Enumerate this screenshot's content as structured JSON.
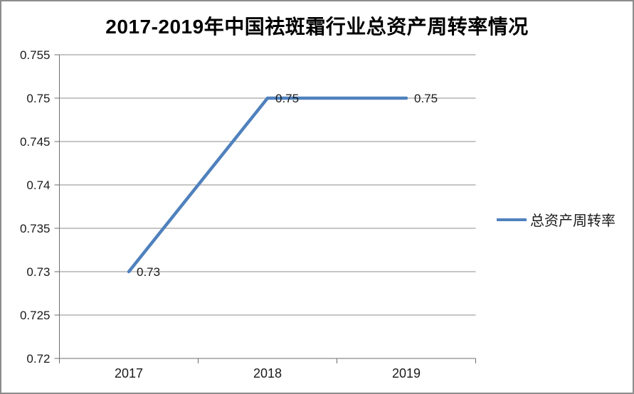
{
  "window": {
    "background": "#FFFFFF",
    "border_color": "#8C8C8C"
  },
  "chart_data": {
    "type": "line",
    "title": "2017-2019年中国祛斑霜行业总资产周转率情况",
    "categories": [
      "2017",
      "2018",
      "2019"
    ],
    "series": [
      {
        "name": "总资产周转率",
        "values": [
          0.73,
          0.75,
          0.75
        ],
        "data_labels": [
          "0.73",
          "0.75",
          "0.75"
        ],
        "color": "#4F81BD"
      }
    ],
    "xlabel": "",
    "ylabel": "",
    "ylim": [
      0.72,
      0.755
    ],
    "yticks": [
      0.72,
      0.725,
      0.73,
      0.735,
      0.74,
      0.745,
      0.75,
      0.755
    ],
    "ytick_labels": [
      "0.72",
      "0.725",
      "0.73",
      "0.735",
      "0.74",
      "0.745",
      "0.75",
      "0.755"
    ],
    "grid": true,
    "legend_position": "right"
  },
  "legend": {
    "label": "总资产周转率"
  },
  "colors": {
    "line": "#4F81BD",
    "gridline": "#8C8C8C",
    "axis": "#6E6E6E",
    "text": "#1A1A1A"
  }
}
